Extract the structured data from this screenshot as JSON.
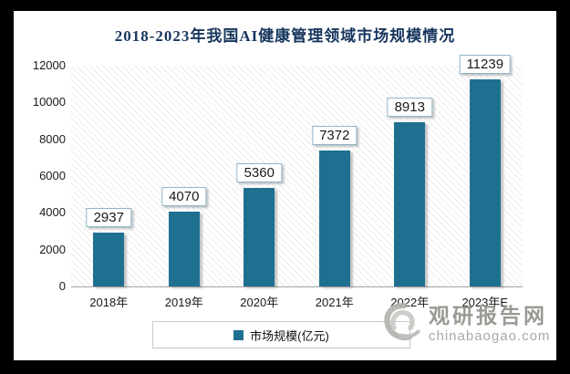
{
  "title": "2018-2023年我国AI健康管理领域市场规模情况",
  "legend": {
    "label": "市场规模(亿元)"
  },
  "watermark": {
    "name": "观研报告网",
    "domain": "chinabaogao.com",
    "logo": "swirl-logo-icon"
  },
  "colors": {
    "bar": "#1f7090",
    "title": "#17365d",
    "label_box_border": "#8fb6c9",
    "watermark_gray": "#92928c",
    "axis_line": "#a3a3a3"
  },
  "chart_data": {
    "type": "bar",
    "title": "2018-2023年我国AI健康管理领域市场规模情况",
    "categories": [
      "2018年",
      "2019年",
      "2020年",
      "2021年",
      "2022年",
      "2023年E"
    ],
    "values": [
      2937,
      4070,
      5360,
      7372,
      8913,
      11239
    ],
    "series_name": "市场规模(亿元)",
    "xlabel": "",
    "ylabel": "",
    "ylim": [
      0,
      12000
    ],
    "ytick_step": 2000,
    "grid": false,
    "legend_position": "bottom",
    "data_labels": true,
    "background_pattern": "diagonal-hatch"
  }
}
